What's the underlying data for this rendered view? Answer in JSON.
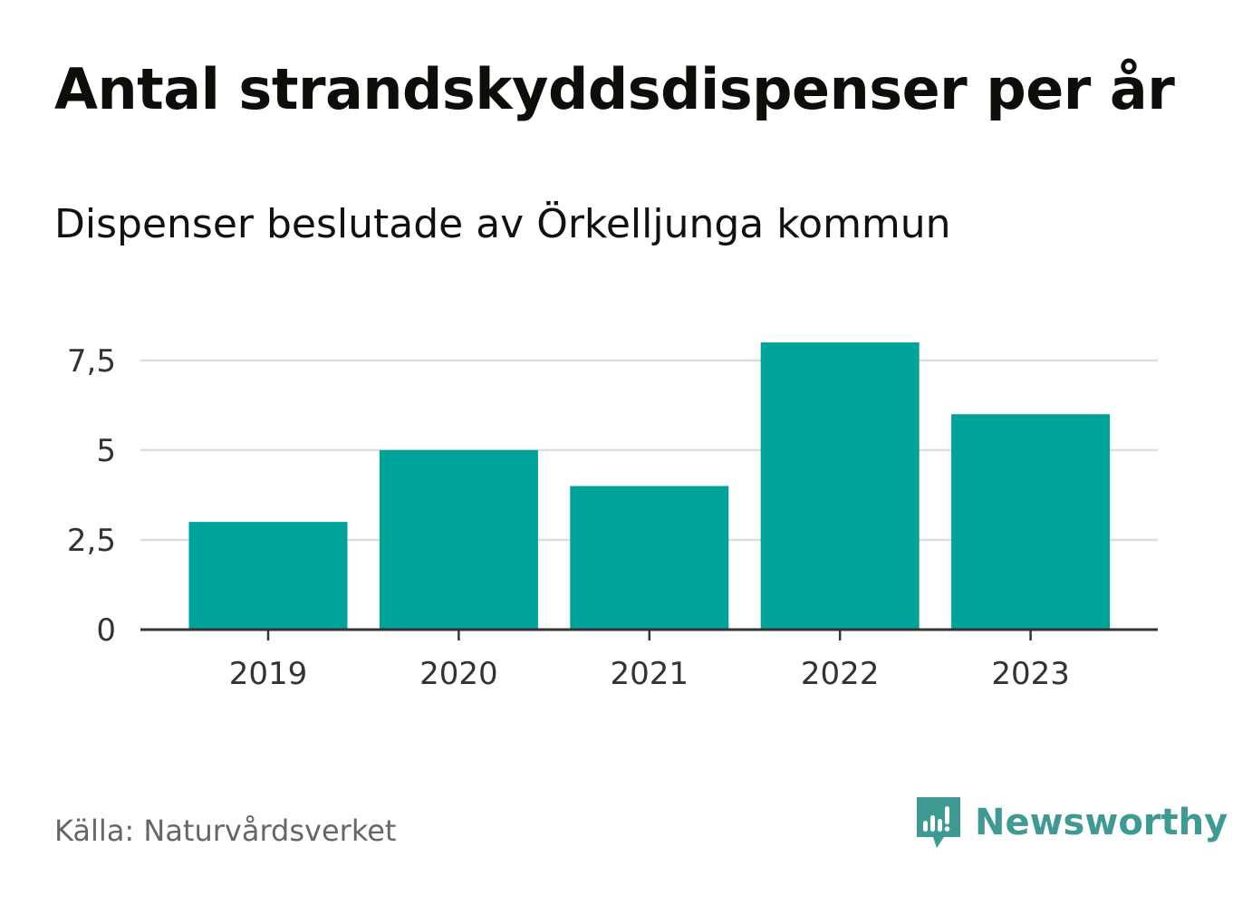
{
  "chart_data": {
    "type": "bar",
    "title": "Antal strandskyddsdispenser per år",
    "subtitle": "Dispenser beslutade av Örkelljunga kommun",
    "categories": [
      "2019",
      "2020",
      "2021",
      "2022",
      "2023"
    ],
    "values": [
      3,
      5,
      4,
      8,
      6
    ],
    "yticks": [
      {
        "value": 0,
        "label": "0"
      },
      {
        "value": 2.5,
        "label": "2,5"
      },
      {
        "value": 5,
        "label": "5"
      },
      {
        "value": 7.5,
        "label": "7,5"
      }
    ],
    "ylim": [
      0,
      8
    ],
    "xlabel": "",
    "ylabel": "",
    "grid": true,
    "bar_color": "#00a39a"
  },
  "footer": {
    "source": "Källa: Naturvårdsverket",
    "brand": "Newsworthy",
    "brand_color": "#3f9a94",
    "logo_icon": "bar-chart-speech-bubble-icon"
  }
}
